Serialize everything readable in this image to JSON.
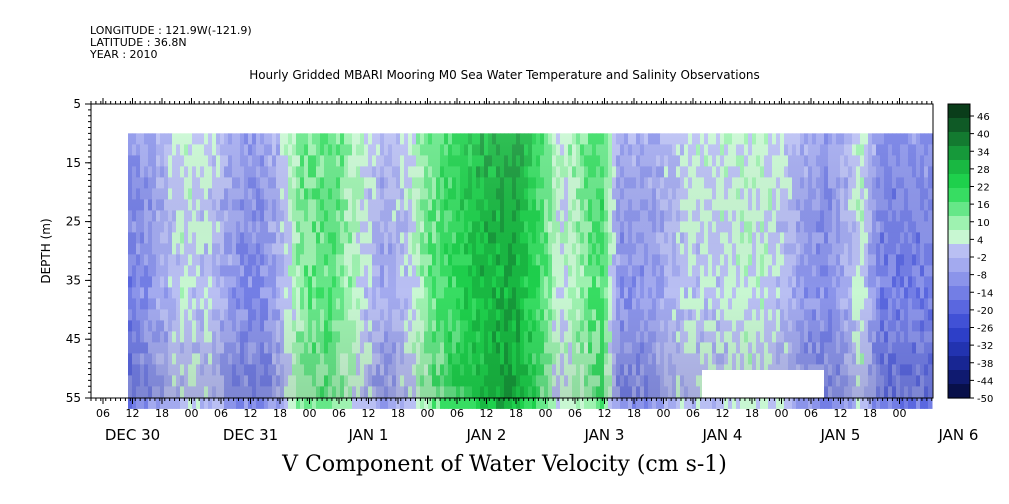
{
  "meta": {
    "longitude": "LONGITUDE : 121.9W(-121.9)",
    "latitude": "LATITUDE : 36.8N",
    "year": "YEAR : 2010"
  },
  "chart_data": {
    "type": "heatmap",
    "title": "Hourly Gridded MBARI Mooring M0 Sea Water Temperature and Salinity Observations",
    "xlabel": "V Component of Water Velocity (cm s-1)",
    "ylabel": "DEPTH (m)",
    "yticks": [
      5,
      15,
      25,
      35,
      45,
      55
    ],
    "ylim": [
      5,
      55
    ],
    "y_inverted": true,
    "x_hour_labels": [
      "06",
      "12",
      "18",
      "00",
      "06",
      "12",
      "18",
      "00",
      "06",
      "12",
      "18",
      "00",
      "06",
      "12",
      "18",
      "00",
      "06",
      "12",
      "18",
      "00",
      "06",
      "12",
      "18",
      "00",
      "06",
      "12",
      "18",
      "00"
    ],
    "x_day_labels": [
      "DEC 30",
      "DEC 31",
      "JAN  1",
      "JAN  2",
      "JAN  3",
      "JAN  4",
      "JAN  5",
      "JAN  6"
    ],
    "colorbar_levels": [
      "46",
      "40",
      "34",
      "28",
      "22",
      "16",
      "10",
      "4",
      "-2",
      "-8",
      "-14",
      "-20",
      "-26",
      "-32",
      "-38",
      "-44",
      "-50"
    ],
    "colorbar_range": [
      -50,
      50
    ],
    "colorbar_colors": [
      "#0a3d1a",
      "#0f5a26",
      "#137a30",
      "#16993a",
      "#19b842",
      "#1ed04c",
      "#37dd62",
      "#66e788",
      "#9ef2b0",
      "#c8f7d2",
      "#b9bff3",
      "#a3aaef",
      "#8b94ea",
      "#737ee5",
      "#5a67df",
      "#4151d6",
      "#2d3fc8",
      "#2233b0",
      "#182693",
      "#0f1a70",
      "#08104a"
    ],
    "time_profile": [
      {
        "day": 0.0,
        "v": -12
      },
      {
        "day": 0.2,
        "v": -6
      },
      {
        "day": 0.45,
        "v": 5
      },
      {
        "day": 0.7,
        "v": 2
      },
      {
        "day": 0.9,
        "v": -8
      },
      {
        "day": 1.1,
        "v": -10
      },
      {
        "day": 1.25,
        "v": -3
      },
      {
        "day": 1.45,
        "v": 14
      },
      {
        "day": 1.7,
        "v": 18
      },
      {
        "day": 1.95,
        "v": 6
      },
      {
        "day": 2.15,
        "v": -4
      },
      {
        "day": 2.35,
        "v": 3
      },
      {
        "day": 2.55,
        "v": 16
      },
      {
        "day": 2.8,
        "v": 24
      },
      {
        "day": 3.0,
        "v": 30
      },
      {
        "day": 3.25,
        "v": 34
      },
      {
        "day": 3.45,
        "v": 22
      },
      {
        "day": 3.65,
        "v": 4
      },
      {
        "day": 3.8,
        "v": 12
      },
      {
        "day": 4.0,
        "v": 20
      },
      {
        "day": 4.15,
        "v": -8
      },
      {
        "day": 4.4,
        "v": -6
      },
      {
        "day": 4.7,
        "v": 3
      },
      {
        "day": 5.0,
        "v": 4
      },
      {
        "day": 5.3,
        "v": 6
      },
      {
        "day": 5.55,
        "v": 2
      },
      {
        "day": 5.7,
        "v": -6
      },
      {
        "day": 5.9,
        "v": -9
      },
      {
        "day": 6.05,
        "v": -4
      },
      {
        "day": 6.2,
        "v": 6
      },
      {
        "day": 6.35,
        "v": -12
      }
    ]
  }
}
